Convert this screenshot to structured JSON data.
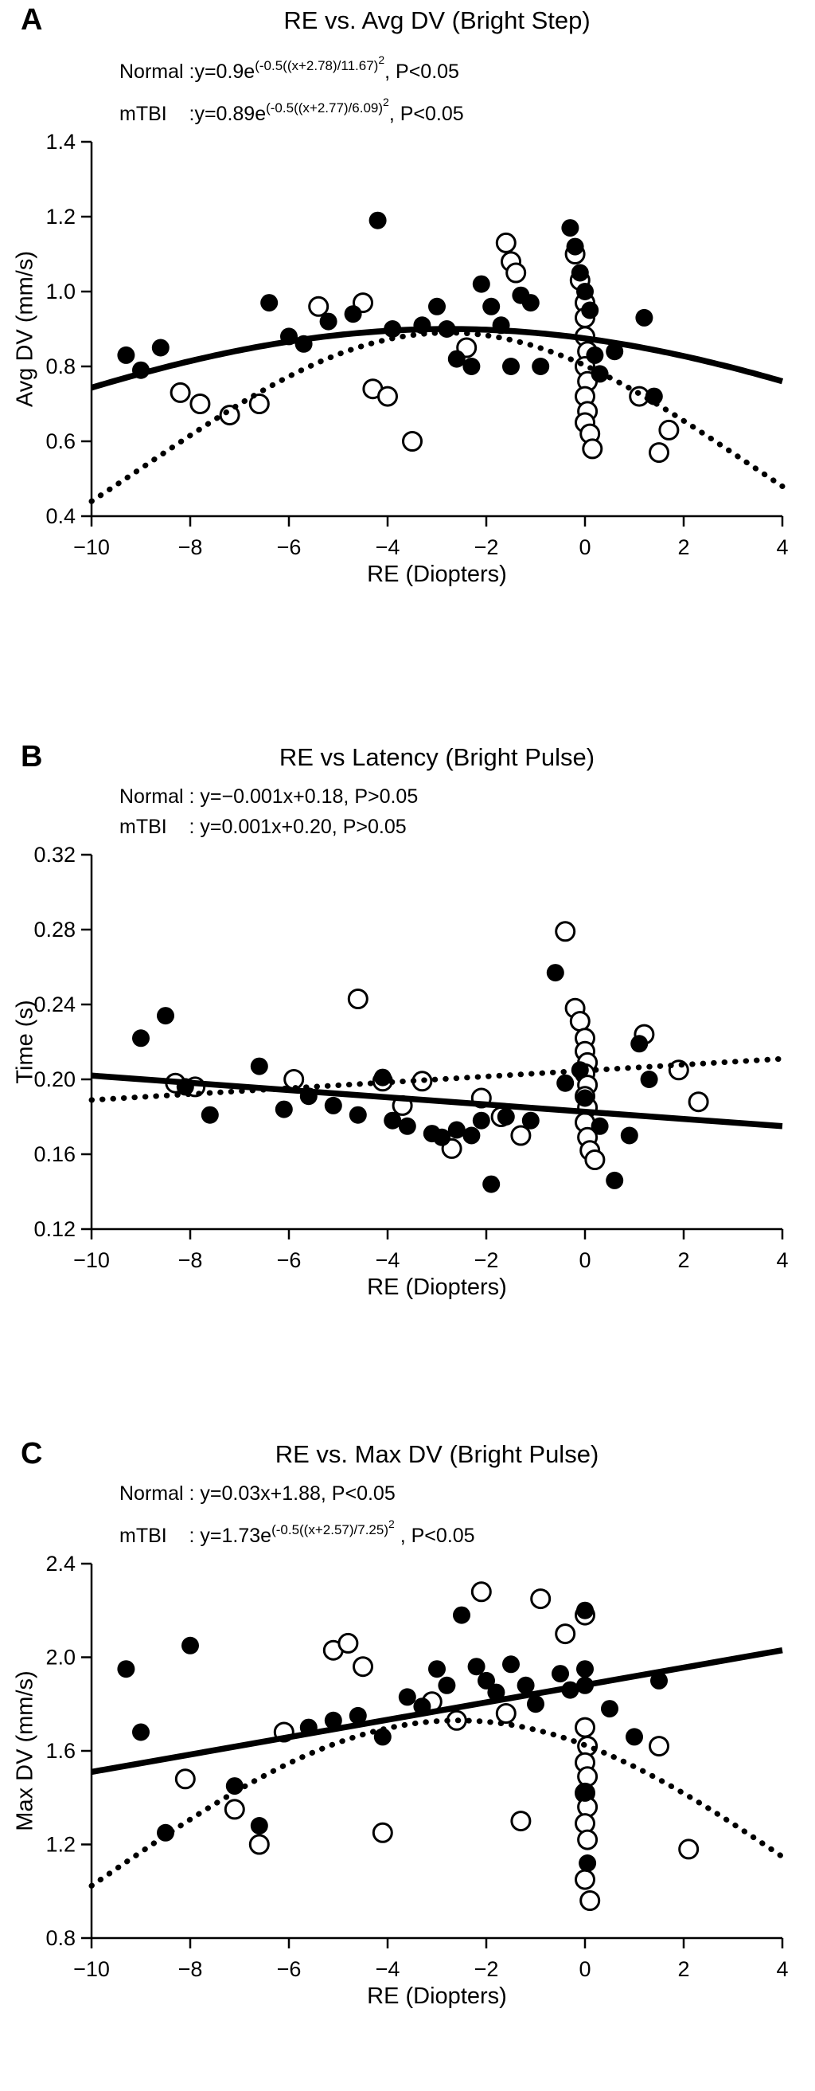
{
  "colors": {
    "foreground": "#000000",
    "background": "#ffffff"
  },
  "chart_data": [
    {
      "type": "scatter",
      "panel": "A",
      "title": "RE vs. Avg DV (Bright Step)",
      "xlabel": "RE (Diopters)",
      "ylabel": "Avg DV (mm/s)",
      "xlim": [
        -10,
        4
      ],
      "ylim": [
        0.4,
        1.4
      ],
      "xticks": [
        -10,
        -8,
        -6,
        -4,
        -2,
        0,
        2,
        4
      ],
      "yticks": [
        0.4,
        0.6,
        0.8,
        1.0,
        1.2,
        1.4
      ],
      "ydec": 1,
      "legend_hint": "filled=Normal, open=mTBI, solid line=Normal fit, dotted line=mTBI fit",
      "equations": [
        [
          {
            "t": "Normal :y=0.9e"
          },
          {
            "t": "(-0.5((x+2.78)/11.67)",
            "sup": 1
          },
          {
            "t": "2",
            "sup": 2
          },
          {
            "t": ", P<0.05"
          }
        ],
        [
          {
            "t": "mTBI    :y=0.89e"
          },
          {
            "t": "(-0.5((x+2.77)/6.09)",
            "sup": 1
          },
          {
            "t": "2",
            "sup": 2
          },
          {
            "t": ", P<0.05"
          }
        ]
      ],
      "series": [
        {
          "name": "mTBI",
          "marker": "open",
          "points": [
            [
              -8.2,
              0.73
            ],
            [
              -7.8,
              0.7
            ],
            [
              -7.2,
              0.67
            ],
            [
              -6.6,
              0.7
            ],
            [
              -5.4,
              0.96
            ],
            [
              -4.5,
              0.97
            ],
            [
              -4.3,
              0.74
            ],
            [
              -4.0,
              0.72
            ],
            [
              -3.5,
              0.6
            ],
            [
              -2.4,
              0.85
            ],
            [
              -1.6,
              1.13
            ],
            [
              -1.5,
              1.08
            ],
            [
              -1.4,
              1.05
            ],
            [
              -0.2,
              1.1
            ],
            [
              -0.1,
              1.03
            ],
            [
              0.0,
              0.97
            ],
            [
              0.0,
              0.93
            ],
            [
              0.0,
              0.88
            ],
            [
              0.05,
              0.84
            ],
            [
              0.0,
              0.8
            ],
            [
              0.05,
              0.76
            ],
            [
              0.0,
              0.72
            ],
            [
              0.05,
              0.68
            ],
            [
              0.0,
              0.65
            ],
            [
              0.1,
              0.62
            ],
            [
              0.15,
              0.58
            ],
            [
              1.1,
              0.72
            ],
            [
              1.5,
              0.57
            ],
            [
              1.7,
              0.63
            ]
          ]
        },
        {
          "name": "Normal",
          "marker": "filled",
          "points": [
            [
              -9.3,
              0.83
            ],
            [
              -9.0,
              0.79
            ],
            [
              -8.6,
              0.85
            ],
            [
              -6.4,
              0.97
            ],
            [
              -6.0,
              0.88
            ],
            [
              -5.7,
              0.86
            ],
            [
              -5.2,
              0.92
            ],
            [
              -4.7,
              0.94
            ],
            [
              -4.2,
              1.19
            ],
            [
              -3.9,
              0.9
            ],
            [
              -3.3,
              0.91
            ],
            [
              -3.0,
              0.96
            ],
            [
              -2.8,
              0.9
            ],
            [
              -2.6,
              0.82
            ],
            [
              -2.3,
              0.8
            ],
            [
              -2.1,
              1.02
            ],
            [
              -1.9,
              0.96
            ],
            [
              -1.7,
              0.91
            ],
            [
              -1.5,
              0.8
            ],
            [
              -1.3,
              0.99
            ],
            [
              -1.1,
              0.97
            ],
            [
              -0.9,
              0.8
            ],
            [
              -0.3,
              1.17
            ],
            [
              -0.2,
              1.12
            ],
            [
              -0.1,
              1.05
            ],
            [
              0.0,
              1.0
            ],
            [
              0.1,
              0.95
            ],
            [
              0.2,
              0.83
            ],
            [
              0.3,
              0.78
            ],
            [
              0.6,
              0.84
            ],
            [
              1.2,
              0.93
            ],
            [
              1.4,
              0.72
            ]
          ]
        }
      ],
      "fits": [
        {
          "name": "Normal",
          "style": "solid",
          "type": "gaussian",
          "a": 0.9,
          "mu": -2.78,
          "sigma": 11.67
        },
        {
          "name": "mTBI",
          "style": "dotted",
          "type": "gaussian",
          "a": 0.89,
          "mu": -2.77,
          "sigma": 6.09
        }
      ]
    },
    {
      "type": "scatter",
      "panel": "B",
      "title": "RE vs Latency (Bright Pulse)",
      "xlabel": "RE (Diopters)",
      "ylabel": "Time (s)",
      "xlim": [
        -10,
        4
      ],
      "ylim": [
        0.12,
        0.32
      ],
      "xticks": [
        -10,
        -8,
        -6,
        -4,
        -2,
        0,
        2,
        4
      ],
      "yticks": [
        0.12,
        0.16,
        0.2,
        0.24,
        0.28,
        0.32
      ],
      "ydec": 2,
      "legend_hint": "filled=Normal, open=mTBI, solid line=Normal fit, dotted line=mTBI fit",
      "equations": [
        [
          {
            "t": "Normal : y=−0.001x+0.18, P>0.05"
          }
        ],
        [
          {
            "t": "mTBI    : y=0.001x+0.20, P>0.05"
          }
        ]
      ],
      "series": [
        {
          "name": "mTBI",
          "marker": "open",
          "points": [
            [
              -8.3,
              0.198
            ],
            [
              -7.9,
              0.196
            ],
            [
              -5.9,
              0.2
            ],
            [
              -4.6,
              0.243
            ],
            [
              -4.1,
              0.199
            ],
            [
              -3.7,
              0.186
            ],
            [
              -3.3,
              0.199
            ],
            [
              -2.7,
              0.163
            ],
            [
              -2.1,
              0.19
            ],
            [
              -1.7,
              0.18
            ],
            [
              -1.3,
              0.17
            ],
            [
              -0.4,
              0.279
            ],
            [
              -0.2,
              0.238
            ],
            [
              -0.1,
              0.231
            ],
            [
              0.0,
              0.222
            ],
            [
              0.0,
              0.215
            ],
            [
              0.05,
              0.209
            ],
            [
              0.0,
              0.203
            ],
            [
              0.05,
              0.197
            ],
            [
              0.0,
              0.191
            ],
            [
              0.05,
              0.185
            ],
            [
              0.0,
              0.177
            ],
            [
              0.05,
              0.169
            ],
            [
              0.1,
              0.162
            ],
            [
              0.2,
              0.157
            ],
            [
              1.2,
              0.224
            ],
            [
              1.9,
              0.205
            ],
            [
              2.3,
              0.188
            ]
          ]
        },
        {
          "name": "Normal",
          "marker": "filled",
          "points": [
            [
              -9.0,
              0.222
            ],
            [
              -8.5,
              0.234
            ],
            [
              -8.1,
              0.196
            ],
            [
              -7.6,
              0.181
            ],
            [
              -6.6,
              0.207
            ],
            [
              -6.1,
              0.184
            ],
            [
              -5.6,
              0.191
            ],
            [
              -5.1,
              0.186
            ],
            [
              -4.6,
              0.181
            ],
            [
              -4.1,
              0.201
            ],
            [
              -3.9,
              0.178
            ],
            [
              -3.6,
              0.175
            ],
            [
              -3.1,
              0.171
            ],
            [
              -2.9,
              0.169
            ],
            [
              -2.6,
              0.173
            ],
            [
              -2.3,
              0.17
            ],
            [
              -2.1,
              0.178
            ],
            [
              -1.9,
              0.144
            ],
            [
              -1.6,
              0.18
            ],
            [
              -1.1,
              0.178
            ],
            [
              -0.6,
              0.257
            ],
            [
              -0.4,
              0.198
            ],
            [
              -0.1,
              0.205
            ],
            [
              0.0,
              0.19
            ],
            [
              0.3,
              0.175
            ],
            [
              0.6,
              0.146
            ],
            [
              0.9,
              0.17
            ],
            [
              1.1,
              0.219
            ],
            [
              1.3,
              0.2
            ]
          ]
        }
      ],
      "fits": [
        {
          "name": "Normal",
          "style": "solid",
          "type": "line",
          "x1": -10,
          "y1": 0.202,
          "x2": 4,
          "y2": 0.175
        },
        {
          "name": "mTBI",
          "style": "dotted",
          "type": "line",
          "x1": -10,
          "y1": 0.189,
          "x2": 4,
          "y2": 0.211
        }
      ]
    },
    {
      "type": "scatter",
      "panel": "C",
      "title": "RE vs.  Max DV (Bright Pulse)",
      "xlabel": "RE (Diopters)",
      "ylabel": "Max DV (mm/s)",
      "xlim": [
        -10,
        4
      ],
      "ylim": [
        0.8,
        2.4
      ],
      "xticks": [
        -10,
        -8,
        -6,
        -4,
        -2,
        0,
        2,
        4
      ],
      "yticks": [
        0.8,
        1.2,
        1.6,
        2.0,
        2.4
      ],
      "ydec": 1,
      "legend_hint": "filled=Normal, open=mTBI, solid line=Normal fit, dotted line=mTBI fit",
      "equations": [
        [
          {
            "t": "Normal : y=0.03x+1.88, P<0.05"
          }
        ],
        [
          {
            "t": "mTBI    : y=1.73e"
          },
          {
            "t": "(-0.5((x+2.57)/7.25)",
            "sup": 1
          },
          {
            "t": "2",
            "sup": 2
          },
          {
            "t": " , P<0.05"
          }
        ]
      ],
      "series": [
        {
          "name": "mTBI",
          "marker": "open",
          "points": [
            [
              -8.1,
              1.48
            ],
            [
              -7.1,
              1.35
            ],
            [
              -6.6,
              1.2
            ],
            [
              -6.1,
              1.68
            ],
            [
              -5.1,
              2.03
            ],
            [
              -4.8,
              2.06
            ],
            [
              -4.5,
              1.96
            ],
            [
              -4.1,
              1.25
            ],
            [
              -3.1,
              1.81
            ],
            [
              -2.6,
              1.73
            ],
            [
              -2.1,
              2.28
            ],
            [
              -1.6,
              1.76
            ],
            [
              -1.3,
              1.3
            ],
            [
              -0.9,
              2.25
            ],
            [
              -0.4,
              2.1
            ],
            [
              0.0,
              2.18
            ],
            [
              0.0,
              1.7
            ],
            [
              0.05,
              1.62
            ],
            [
              0.0,
              1.55
            ],
            [
              0.05,
              1.49
            ],
            [
              0.0,
              1.42
            ],
            [
              0.05,
              1.36
            ],
            [
              0.0,
              1.29
            ],
            [
              0.05,
              1.22
            ],
            [
              0.0,
              1.05
            ],
            [
              0.1,
              0.96
            ],
            [
              1.5,
              1.62
            ],
            [
              2.1,
              1.18
            ]
          ]
        },
        {
          "name": "Normal",
          "marker": "filled",
          "points": [
            [
              -9.3,
              1.95
            ],
            [
              -9.0,
              1.68
            ],
            [
              -8.5,
              1.25
            ],
            [
              -8.0,
              2.05
            ],
            [
              -7.1,
              1.45
            ],
            [
              -6.6,
              1.28
            ],
            [
              -5.6,
              1.7
            ],
            [
              -5.1,
              1.73
            ],
            [
              -4.6,
              1.75
            ],
            [
              -4.1,
              1.66
            ],
            [
              -3.6,
              1.83
            ],
            [
              -3.3,
              1.79
            ],
            [
              -3.0,
              1.95
            ],
            [
              -2.8,
              1.88
            ],
            [
              -2.5,
              2.18
            ],
            [
              -2.2,
              1.96
            ],
            [
              -2.0,
              1.9
            ],
            [
              -1.8,
              1.85
            ],
            [
              -1.5,
              1.97
            ],
            [
              -1.2,
              1.88
            ],
            [
              -1.0,
              1.8
            ],
            [
              -0.5,
              1.93
            ],
            [
              -0.3,
              1.86
            ],
            [
              0.0,
              2.2
            ],
            [
              0.0,
              1.95
            ],
            [
              0.0,
              1.88
            ],
            [
              0.0,
              1.42
            ],
            [
              0.05,
              1.12
            ],
            [
              0.5,
              1.78
            ],
            [
              1.0,
              1.66
            ],
            [
              1.5,
              1.9
            ]
          ]
        }
      ],
      "fits": [
        {
          "name": "Normal",
          "style": "solid",
          "type": "line",
          "x1": -10,
          "y1": 1.51,
          "x2": 4,
          "y2": 2.03
        },
        {
          "name": "mTBI",
          "style": "dotted",
          "type": "gaussian",
          "a": 1.73,
          "mu": -2.57,
          "sigma": 7.25
        }
      ]
    }
  ]
}
